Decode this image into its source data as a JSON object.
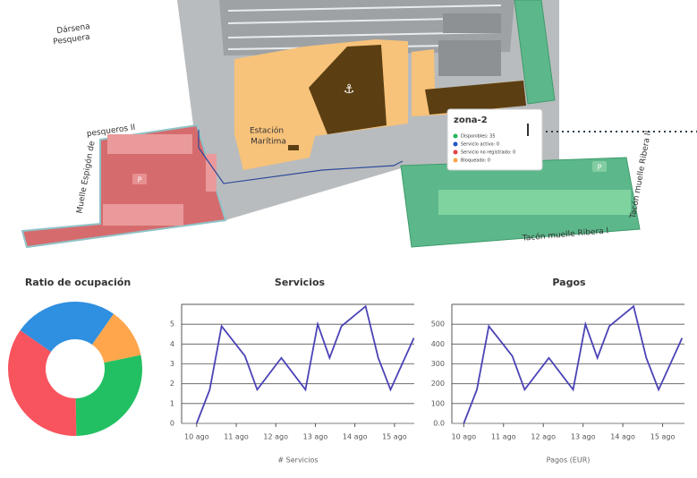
{
  "map": {
    "labels": {
      "darsena_1": "Dársena",
      "darsena_2": "Pesquera",
      "pesqueros": "pesqueros II",
      "espigon": "Muelle Espigón de",
      "estacion_1": "Estación",
      "estacion_2": "Marítima",
      "ribera_2": "Tacón muelle Ribera II",
      "ribera_1": "Tacón muelle Ribera I",
      "parking": "P"
    },
    "popup": {
      "title": "zona-2",
      "items": [
        {
          "text": "Disponibles: 35",
          "color": "#22b35e"
        },
        {
          "text": "Servicio activo: 0",
          "color": "#2255c4"
        },
        {
          "text": "Servicio no registrado: 0",
          "color": "#e2404a"
        },
        {
          "text": "Bloqueado: 0",
          "color": "#f7a24a"
        }
      ]
    }
  },
  "chart_data": [
    {
      "type": "pie",
      "title": "Ratio de ocupación",
      "values": [
        25,
        12,
        28,
        35
      ],
      "colors": [
        "#2f8fe0",
        "#ffa64d",
        "#22c063",
        "#f8545e"
      ]
    },
    {
      "type": "line",
      "title": "Servicios",
      "x_label": "# Servicios",
      "color": "#4b43b5",
      "x": [
        0,
        0.33,
        0.63,
        1.22,
        1.53,
        2.14,
        2.75,
        3.06,
        3.36,
        3.66,
        4.27,
        4.59,
        4.9,
        5.49
      ],
      "values": [
        0,
        1.7,
        4.9,
        3.4,
        1.7,
        3.3,
        1.7,
        5.0,
        3.3,
        4.9,
        5.9,
        3.3,
        1.7,
        4.3
      ],
      "xlim": [
        -0.38,
        5.5
      ],
      "xticks": [
        {
          "value": 0,
          "label": "10 ago"
        },
        {
          "value": 1,
          "label": "11 ago"
        },
        {
          "value": 2,
          "label": "12 ago"
        },
        {
          "value": 3,
          "label": "13 ago"
        },
        {
          "value": 4,
          "label": "14 ago"
        },
        {
          "value": 5,
          "label": "15 ago"
        }
      ],
      "ylim": [
        0,
        6
      ],
      "yticks": [
        0,
        1,
        2,
        3,
        4,
        5
      ],
      "grid": true
    },
    {
      "type": "line",
      "title": "Pagos",
      "x_label": "Pagos (EUR)",
      "color": "#4b43b5",
      "x": [
        0,
        0.33,
        0.63,
        1.22,
        1.53,
        2.14,
        2.75,
        3.06,
        3.36,
        3.66,
        4.27,
        4.59,
        4.9,
        5.49
      ],
      "values": [
        0,
        170,
        490,
        340,
        170,
        330,
        170,
        500,
        330,
        490,
        590,
        330,
        170,
        430
      ],
      "xlim": [
        -0.3,
        5.55
      ],
      "xticks": [
        {
          "value": 0,
          "label": "10 ago"
        },
        {
          "value": 1,
          "label": "11 ago"
        },
        {
          "value": 2,
          "label": "12 ago"
        },
        {
          "value": 3,
          "label": "13 ago"
        },
        {
          "value": 4,
          "label": "14 ago"
        },
        {
          "value": 5,
          "label": "15 ago"
        }
      ],
      "ylim": [
        0,
        600
      ],
      "yticks": [
        {
          "value": 0,
          "label": "0.0"
        },
        100,
        200,
        300,
        400,
        500
      ],
      "grid": true
    }
  ]
}
